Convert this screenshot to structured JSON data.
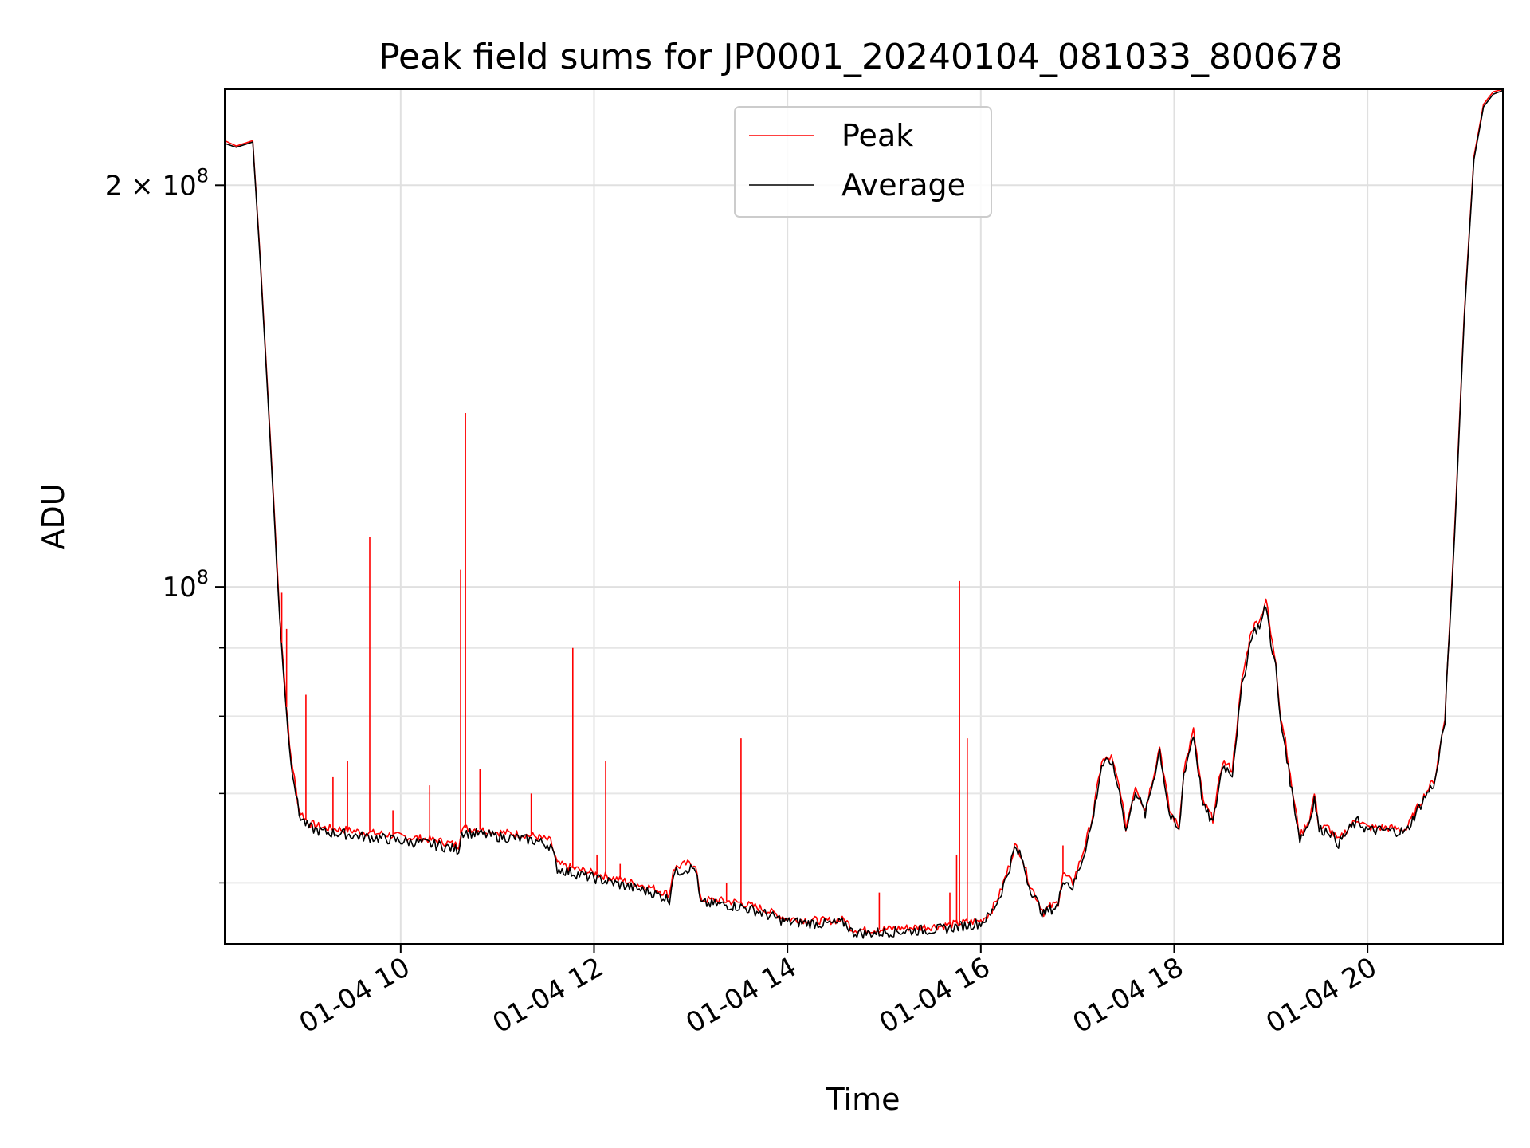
{
  "chart_data": {
    "type": "line",
    "title": "Peak field sums for JP0001_20240104_081033_800678",
    "xlabel": "Time",
    "ylabel": "ADU",
    "y_scale": "log",
    "xlim": [
      8.18,
      21.4
    ],
    "ylim": [
      54000000,
      236000000
    ],
    "grid": true,
    "legend_position": "top-center",
    "x_ticks": [
      {
        "value": 10,
        "label": "01-04 10"
      },
      {
        "value": 12,
        "label": "01-04 12"
      },
      {
        "value": 14,
        "label": "01-04 14"
      },
      {
        "value": 16,
        "label": "01-04 16"
      },
      {
        "value": 18,
        "label": "01-04 18"
      },
      {
        "value": 20,
        "label": "01-04 20"
      }
    ],
    "y_ticks": [
      {
        "value": 100000000,
        "label_base": "10",
        "label_exp": "8",
        "label_prefix": ""
      },
      {
        "value": 200000000,
        "label_base": "10",
        "label_exp": "8",
        "label_prefix": "2 × "
      }
    ],
    "y_minor_ticks": [
      60000000,
      70000000,
      80000000,
      90000000
    ],
    "series": [
      {
        "name": "Peak",
        "color": "#ff0000",
        "points": [
          [
            8.18,
            216000000
          ],
          [
            8.3,
            214000000
          ],
          [
            8.47,
            216000000
          ],
          [
            8.55,
            175000000
          ],
          [
            8.65,
            130000000
          ],
          [
            8.75,
            95000000
          ],
          [
            8.85,
            76000000
          ],
          [
            8.95,
            68000000
          ],
          [
            9.05,
            66500000
          ],
          [
            9.2,
            66000000
          ],
          [
            9.4,
            65800000
          ],
          [
            9.6,
            65500000
          ],
          [
            9.8,
            65300000
          ],
          [
            10.0,
            65000000
          ],
          [
            10.2,
            64800000
          ],
          [
            10.4,
            64500000
          ],
          [
            10.6,
            64000000
          ],
          [
            10.63,
            66000000
          ],
          [
            10.8,
            65800000
          ],
          [
            11.0,
            65500000
          ],
          [
            11.2,
            65300000
          ],
          [
            11.4,
            65000000
          ],
          [
            11.55,
            64500000
          ],
          [
            11.62,
            62000000
          ],
          [
            11.8,
            61500000
          ],
          [
            12.0,
            61000000
          ],
          [
            12.2,
            60500000
          ],
          [
            12.4,
            60000000
          ],
          [
            12.6,
            59500000
          ],
          [
            12.78,
            58800000
          ],
          [
            12.82,
            61500000
          ],
          [
            12.95,
            62000000
          ],
          [
            13.05,
            62000000
          ],
          [
            13.1,
            58300000
          ],
          [
            13.3,
            58200000
          ],
          [
            13.5,
            58000000
          ],
          [
            13.7,
            57500000
          ],
          [
            13.9,
            56800000
          ],
          [
            14.0,
            56400000
          ],
          [
            14.2,
            56300000
          ],
          [
            14.4,
            56200000
          ],
          [
            14.6,
            56300000
          ],
          [
            14.67,
            55400000
          ],
          [
            14.8,
            55300000
          ],
          [
            15.0,
            55400000
          ],
          [
            15.2,
            55500000
          ],
          [
            15.4,
            55600000
          ],
          [
            15.6,
            55700000
          ],
          [
            15.8,
            56000000
          ],
          [
            16.0,
            56200000
          ],
          [
            16.1,
            57000000
          ],
          [
            16.2,
            59000000
          ],
          [
            16.3,
            62000000
          ],
          [
            16.35,
            64000000
          ],
          [
            16.42,
            63000000
          ],
          [
            16.5,
            60000000
          ],
          [
            16.6,
            58000000
          ],
          [
            16.65,
            57000000
          ],
          [
            16.7,
            57500000
          ],
          [
            16.8,
            58000000
          ],
          [
            16.85,
            61000000
          ],
          [
            16.95,
            60000000
          ],
          [
            17.05,
            63000000
          ],
          [
            17.15,
            67000000
          ],
          [
            17.25,
            74000000
          ],
          [
            17.35,
            74500000
          ],
          [
            17.45,
            70000000
          ],
          [
            17.5,
            66000000
          ],
          [
            17.6,
            71000000
          ],
          [
            17.7,
            68000000
          ],
          [
            17.8,
            73000000
          ],
          [
            17.85,
            76000000
          ],
          [
            17.95,
            68000000
          ],
          [
            18.05,
            66000000
          ],
          [
            18.1,
            73000000
          ],
          [
            18.2,
            78000000
          ],
          [
            18.3,
            69000000
          ],
          [
            18.4,
            67000000
          ],
          [
            18.5,
            74000000
          ],
          [
            18.6,
            73000000
          ],
          [
            18.7,
            85000000
          ],
          [
            18.8,
            93000000
          ],
          [
            18.9,
            95000000
          ],
          [
            18.95,
            98000000
          ],
          [
            19.0,
            92000000
          ],
          [
            19.05,
            88000000
          ],
          [
            19.1,
            80000000
          ],
          [
            19.15,
            77000000
          ],
          [
            19.2,
            72000000
          ],
          [
            19.3,
            65000000
          ],
          [
            19.4,
            67000000
          ],
          [
            19.45,
            70000000
          ],
          [
            19.5,
            66000000
          ],
          [
            19.6,
            66000000
          ],
          [
            19.7,
            64500000
          ],
          [
            19.8,
            66000000
          ],
          [
            19.9,
            67000000
          ],
          [
            20.0,
            66000000
          ],
          [
            20.2,
            66000000
          ],
          [
            20.4,
            65800000
          ],
          [
            20.5,
            68000000
          ],
          [
            20.6,
            70000000
          ],
          [
            20.7,
            72000000
          ],
          [
            20.8,
            80000000
          ],
          [
            20.9,
            110000000
          ],
          [
            21.0,
            160000000
          ],
          [
            21.1,
            210000000
          ],
          [
            21.2,
            230000000
          ],
          [
            21.3,
            235000000
          ],
          [
            21.4,
            236000000
          ]
        ],
        "spikes": [
          [
            8.77,
            99000000
          ],
          [
            8.82,
            93000000
          ],
          [
            9.02,
            83000000
          ],
          [
            9.3,
            72000000
          ],
          [
            9.45,
            74000000
          ],
          [
            9.68,
            109000000
          ],
          [
            9.92,
            68000000
          ],
          [
            10.3,
            71000000
          ],
          [
            10.62,
            103000000
          ],
          [
            10.67,
            135000000
          ],
          [
            10.82,
            73000000
          ],
          [
            11.35,
            70000000
          ],
          [
            11.78,
            90000000
          ],
          [
            12.03,
            63000000
          ],
          [
            12.12,
            74000000
          ],
          [
            12.27,
            62000000
          ],
          [
            13.37,
            60000000
          ],
          [
            13.52,
            77000000
          ],
          [
            14.95,
            59000000
          ],
          [
            15.68,
            59000000
          ],
          [
            15.78,
            101000000
          ],
          [
            15.86,
            77000000
          ],
          [
            15.75,
            63000000
          ],
          [
            16.85,
            64000000
          ]
        ]
      },
      {
        "name": "Average",
        "color": "#000000",
        "points": [
          [
            8.18,
            215000000
          ],
          [
            8.3,
            213500000
          ],
          [
            8.47,
            215500000
          ],
          [
            8.55,
            174000000
          ],
          [
            8.65,
            129000000
          ],
          [
            8.75,
            94000000
          ],
          [
            8.85,
            75500000
          ],
          [
            8.95,
            67500000
          ],
          [
            9.05,
            66000000
          ],
          [
            9.2,
            65500000
          ],
          [
            9.4,
            65300000
          ],
          [
            9.6,
            65000000
          ],
          [
            9.8,
            64800000
          ],
          [
            10.0,
            64500000
          ],
          [
            10.2,
            64300000
          ],
          [
            10.4,
            64000000
          ],
          [
            10.6,
            63500000
          ],
          [
            10.63,
            65500000
          ],
          [
            10.8,
            65300000
          ],
          [
            11.0,
            65000000
          ],
          [
            11.2,
            64800000
          ],
          [
            11.4,
            64500000
          ],
          [
            11.55,
            64000000
          ],
          [
            11.62,
            61500000
          ],
          [
            11.8,
            61000000
          ],
          [
            12.0,
            60500000
          ],
          [
            12.2,
            60000000
          ],
          [
            12.4,
            59500000
          ],
          [
            12.6,
            59000000
          ],
          [
            12.78,
            58300000
          ],
          [
            12.82,
            61000000
          ],
          [
            12.95,
            61500000
          ],
          [
            13.05,
            61500000
          ],
          [
            13.1,
            57900000
          ],
          [
            13.3,
            57800000
          ],
          [
            13.5,
            57600000
          ],
          [
            13.7,
            57100000
          ],
          [
            13.9,
            56400000
          ],
          [
            14.0,
            56100000
          ],
          [
            14.2,
            56000000
          ],
          [
            14.4,
            55900000
          ],
          [
            14.6,
            56000000
          ],
          [
            14.67,
            55100000
          ],
          [
            14.8,
            55000000
          ],
          [
            15.0,
            55100000
          ],
          [
            15.2,
            55200000
          ],
          [
            15.4,
            55300000
          ],
          [
            15.6,
            55400000
          ],
          [
            15.8,
            55700000
          ],
          [
            16.0,
            56000000
          ],
          [
            16.1,
            56800000
          ],
          [
            16.2,
            58700000
          ],
          [
            16.3,
            61700000
          ],
          [
            16.35,
            63700000
          ],
          [
            16.42,
            62700000
          ],
          [
            16.5,
            59700000
          ],
          [
            16.6,
            57700000
          ],
          [
            16.65,
            56800000
          ],
          [
            16.7,
            57200000
          ],
          [
            16.8,
            57700000
          ],
          [
            16.85,
            60500000
          ],
          [
            16.95,
            59500000
          ],
          [
            17.05,
            62500000
          ],
          [
            17.15,
            66500000
          ],
          [
            17.25,
            73500000
          ],
          [
            17.35,
            74000000
          ],
          [
            17.45,
            69500000
          ],
          [
            17.5,
            65500000
          ],
          [
            17.6,
            70500000
          ],
          [
            17.7,
            67500000
          ],
          [
            17.8,
            72500000
          ],
          [
            17.85,
            75500000
          ],
          [
            17.95,
            67500000
          ],
          [
            18.05,
            65500000
          ],
          [
            18.1,
            72500000
          ],
          [
            18.2,
            77500000
          ],
          [
            18.3,
            68500000
          ],
          [
            18.4,
            66500000
          ],
          [
            18.5,
            73500000
          ],
          [
            18.6,
            72500000
          ],
          [
            18.7,
            84000000
          ],
          [
            18.8,
            92000000
          ],
          [
            18.9,
            94000000
          ],
          [
            18.95,
            97000000
          ],
          [
            19.0,
            91000000
          ],
          [
            19.05,
            87000000
          ],
          [
            19.1,
            79000000
          ],
          [
            19.15,
            76000000
          ],
          [
            19.2,
            71500000
          ],
          [
            19.3,
            64700000
          ],
          [
            19.4,
            66700000
          ],
          [
            19.45,
            69500000
          ],
          [
            19.5,
            65700000
          ],
          [
            19.6,
            65700000
          ],
          [
            19.7,
            64200000
          ],
          [
            19.8,
            65700000
          ],
          [
            19.9,
            66700000
          ],
          [
            20.0,
            65700000
          ],
          [
            20.2,
            65700000
          ],
          [
            20.4,
            65500000
          ],
          [
            20.5,
            67700000
          ],
          [
            20.6,
            69700000
          ],
          [
            20.7,
            71500000
          ],
          [
            20.8,
            79500000
          ],
          [
            20.9,
            109000000
          ],
          [
            21.0,
            159000000
          ],
          [
            21.1,
            209000000
          ],
          [
            21.2,
            229000000
          ],
          [
            21.3,
            234000000
          ],
          [
            21.4,
            235500000
          ]
        ]
      }
    ]
  }
}
